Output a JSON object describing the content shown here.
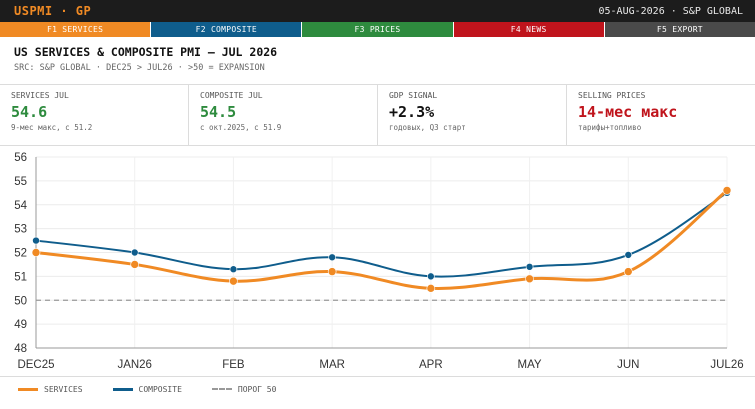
{
  "header": {
    "brand": "USPMI · GP",
    "right_text": "05-AUG-2026 · S&P GLOBAL"
  },
  "fkeys": [
    {
      "label": "F1 SERVICES",
      "color": "#f08a24"
    },
    {
      "label": "F2 COMPOSITE",
      "color": "#0f5d8c"
    },
    {
      "label": "F3 PRICES",
      "color": "#2e8b3e"
    },
    {
      "label": "F4 NEWS",
      "color": "#c0141c"
    },
    {
      "label": "F5 EXPORT",
      "color": "#4a4a4a"
    }
  ],
  "title": "US SERVICES & COMPOSITE PMI — JUL 2026",
  "subtitle": "SRC: S&P GLOBAL · DEC25 > JUL26 · >50 = EXPANSION",
  "cards": [
    {
      "label": "SERVICES JUL",
      "value": "54.6",
      "note": "9-мес макс, с 51.2",
      "color": "#2e8b3e"
    },
    {
      "label": "COMPOSITE JUL",
      "value": "54.5",
      "note": "с окт.2025, с 51.9",
      "color": "#2e8b3e"
    },
    {
      "label": "GDP SIGNAL",
      "value": "+2.3%",
      "note": "годовых, Q3 старт",
      "color": "#111111"
    },
    {
      "label": "SELLING PRICES",
      "value": "14-мес макс",
      "note": "тарифы+топливо",
      "color": "#c0141c"
    }
  ],
  "chart_data": {
    "type": "line",
    "categories": [
      "DEC25",
      "JAN26",
      "FEB",
      "MAR",
      "APR",
      "MAY",
      "JUN",
      "JUL26"
    ],
    "series": [
      {
        "name": "SERVICES",
        "values": [
          52.0,
          51.5,
          50.8,
          51.2,
          50.5,
          50.9,
          51.2,
          54.6
        ],
        "color": "#f08a24"
      },
      {
        "name": "COMPOSITE",
        "values": [
          52.5,
          52.0,
          51.3,
          51.8,
          51.0,
          51.4,
          51.9,
          54.5
        ],
        "color": "#0f5d8c"
      }
    ],
    "threshold": {
      "name": "ПОРОГ 50",
      "value": 50
    },
    "ylim": [
      48,
      56
    ],
    "yticks": [
      "48",
      "49",
      "50",
      "51",
      "52",
      "53",
      "54",
      "55",
      "56"
    ],
    "grid": true,
    "legend_position": "bottom-left"
  }
}
